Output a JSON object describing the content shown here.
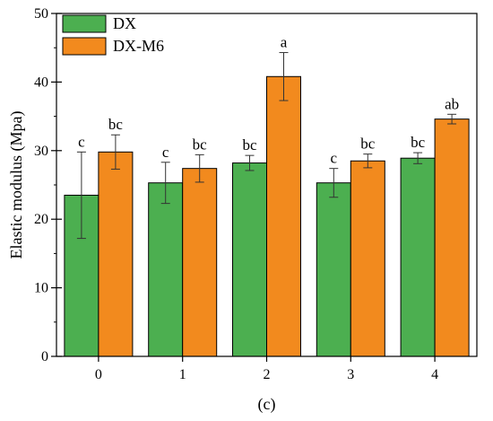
{
  "chart_data": {
    "type": "bar",
    "title": "",
    "xlabel": "",
    "ylabel": "Elastic modulus (Mpa)",
    "caption": "(c)",
    "ylim": [
      0,
      50
    ],
    "yticks": [
      0,
      10,
      20,
      30,
      40,
      50
    ],
    "categories": [
      "0",
      "1",
      "2",
      "3",
      "4"
    ],
    "series": [
      {
        "name": "DX",
        "color": "#4CAF50",
        "values": [
          23.5,
          25.3,
          28.2,
          25.3,
          28.9
        ],
        "errors": [
          6.3,
          3.0,
          1.1,
          2.1,
          0.8
        ],
        "significance": [
          "c",
          "c",
          "bc",
          "c",
          "bc"
        ]
      },
      {
        "name": "DX-M6",
        "color": "#F28A1E",
        "values": [
          29.8,
          27.4,
          40.8,
          28.5,
          34.6
        ],
        "errors": [
          2.5,
          2.0,
          3.5,
          1.0,
          0.7
        ],
        "significance": [
          "bc",
          "bc",
          "a",
          "bc",
          "ab"
        ]
      }
    ],
    "legend_position": "top-left",
    "grid": false
  }
}
